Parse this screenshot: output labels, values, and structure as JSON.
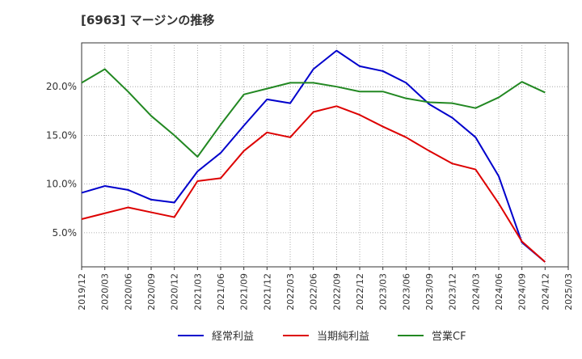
{
  "chart_data": {
    "type": "line",
    "title": "[6963]  マージンの推移",
    "xlabel": "",
    "ylabel": "",
    "categories": [
      "2019/12",
      "2020/03",
      "2020/06",
      "2020/09",
      "2020/12",
      "2021/03",
      "2021/06",
      "2021/09",
      "2021/12",
      "2022/03",
      "2022/06",
      "2022/09",
      "2022/12",
      "2023/03",
      "2023/06",
      "2023/09",
      "2023/12",
      "2024/03",
      "2024/06",
      "2024/09",
      "2024/12",
      "2025/03"
    ],
    "yticks": [
      "5.0%",
      "10.0%",
      "15.0%",
      "20.0%"
    ],
    "ytick_values": [
      5,
      10,
      15,
      20
    ],
    "ylim": [
      1.5,
      24.5
    ],
    "grid": true,
    "legend_position": "bottom",
    "series": [
      {
        "name": "経常利益",
        "color": "#0000cc",
        "values": [
          9.1,
          9.8,
          9.4,
          8.4,
          8.1,
          11.3,
          13.2,
          16.0,
          18.7,
          18.3,
          21.8,
          23.7,
          22.1,
          21.6,
          20.4,
          18.2,
          16.8,
          14.8,
          10.8,
          4.0,
          2.0,
          null
        ]
      },
      {
        "name": "当期純利益",
        "color": "#dd0000",
        "values": [
          6.4,
          7.0,
          7.6,
          7.1,
          6.6,
          10.3,
          10.6,
          13.4,
          15.3,
          14.8,
          17.4,
          18.0,
          17.1,
          15.9,
          14.8,
          13.4,
          12.1,
          11.5,
          8.0,
          4.1,
          2.0,
          null
        ]
      },
      {
        "name": "営業CF",
        "color": "#228822",
        "values": [
          20.4,
          21.8,
          19.5,
          17.0,
          15.0,
          12.8,
          16.1,
          19.2,
          19.8,
          20.4,
          20.4,
          20.0,
          19.5,
          19.5,
          18.8,
          18.4,
          18.3,
          17.8,
          18.9,
          20.5,
          19.4,
          null
        ]
      }
    ]
  }
}
